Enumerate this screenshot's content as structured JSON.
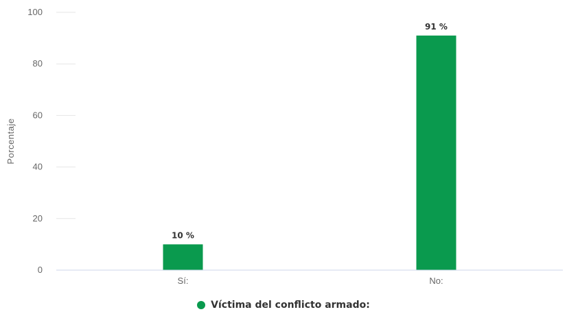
{
  "chart_data": {
    "type": "bar",
    "categories": [
      "Sí:",
      "No:"
    ],
    "series": [
      {
        "name": "Víctima del conflicto armado:",
        "values": [
          10,
          91
        ],
        "color": "#0a9a4e"
      }
    ],
    "data_labels": [
      "10 %",
      "91 %"
    ],
    "ylabel": "Porcentaje",
    "xlabel": "",
    "ylim": [
      0,
      100
    ],
    "yticks": [
      "0",
      "20",
      "40",
      "60",
      "80",
      "100"
    ],
    "grid": true,
    "legend_position": "bottom-center"
  }
}
